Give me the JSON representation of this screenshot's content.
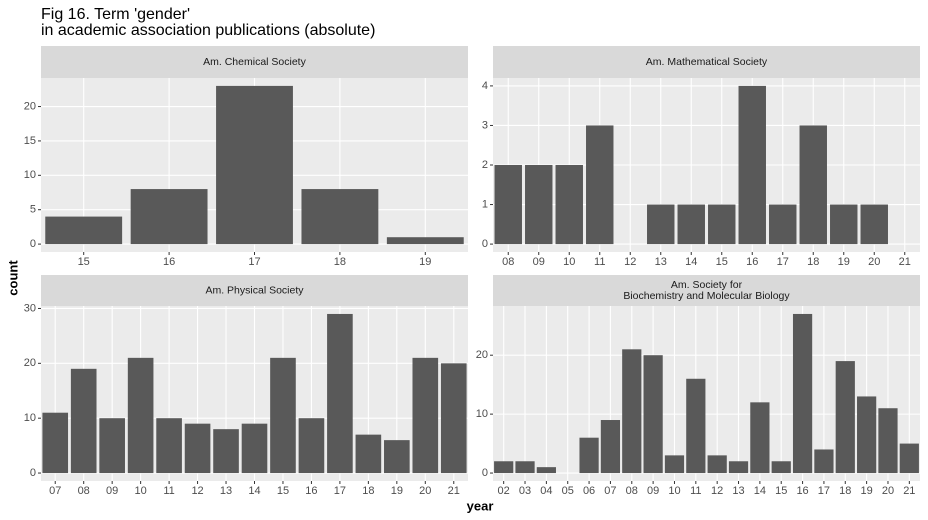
{
  "title": "Fig 16. Term 'gender'",
  "subtitle": "in academic association publications (absolute)",
  "x_label": "year",
  "y_label": "count",
  "chart_data": [
    {
      "type": "bar",
      "title": "Am. Chemical Society",
      "color": "#595959",
      "grid": true,
      "categories": [
        "15",
        "16",
        "17",
        "18",
        "19"
      ],
      "values": [
        4,
        8,
        23,
        8,
        1
      ],
      "ylim": [
        -1.15,
        24.15
      ],
      "yticks": [
        0,
        5,
        10,
        15,
        20
      ]
    },
    {
      "type": "bar",
      "title": "Am. Mathematical Society",
      "color": "#595959",
      "grid": true,
      "categories": [
        "08",
        "09",
        "10",
        "11",
        "12",
        "13",
        "14",
        "15",
        "16",
        "17",
        "18",
        "19",
        "20",
        "21"
      ],
      "values": [
        2,
        2,
        2,
        3,
        0,
        1,
        1,
        1,
        4,
        1,
        3,
        1,
        1,
        0
      ],
      "ylim": [
        -0.2,
        4.2
      ],
      "yticks": [
        0,
        1,
        2,
        3,
        4
      ]
    },
    {
      "type": "bar",
      "title": "Am. Physical Society",
      "color": "#595959",
      "grid": true,
      "categories": [
        "07",
        "08",
        "09",
        "10",
        "11",
        "12",
        "13",
        "14",
        "15",
        "16",
        "17",
        "18",
        "19",
        "20",
        "21"
      ],
      "values": [
        11,
        19,
        10,
        21,
        10,
        9,
        8,
        9,
        21,
        10,
        29,
        7,
        6,
        21,
        20
      ],
      "ylim": [
        -1.45,
        30.45
      ],
      "yticks": [
        0,
        10,
        20,
        30
      ]
    },
    {
      "type": "bar",
      "title": [
        "Am. Society for",
        "Biochemistry and Molecular Biology"
      ],
      "color": "#595959",
      "grid": true,
      "categories": [
        "02",
        "03",
        "04",
        "05",
        "06",
        "07",
        "08",
        "09",
        "10",
        "11",
        "12",
        "13",
        "14",
        "15",
        "16",
        "17",
        "18",
        "19",
        "20",
        "21"
      ],
      "values": [
        2,
        2,
        1,
        0,
        6,
        9,
        21,
        20,
        3,
        16,
        3,
        2,
        12,
        2,
        27,
        4,
        19,
        13,
        11,
        5
      ],
      "ylim": [
        -1.35,
        28.35
      ],
      "yticks": [
        0,
        10,
        20
      ]
    }
  ]
}
